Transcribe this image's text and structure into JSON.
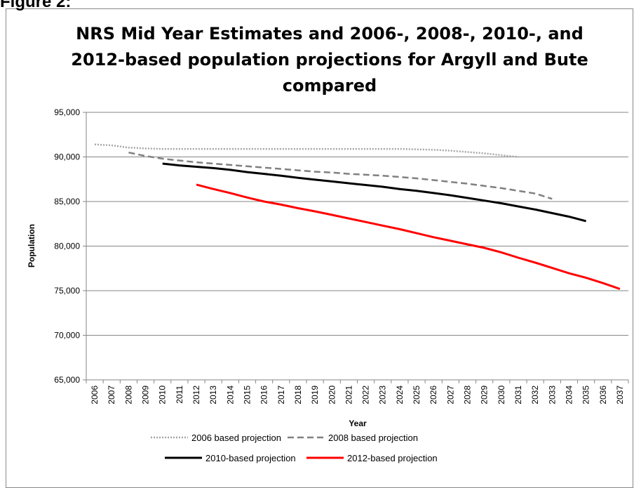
{
  "figure_label": "Figure 2:",
  "chart_data": {
    "type": "line",
    "title": [
      "NRS Mid Year Estimates and 2006-, 2008-, 2010-, and",
      "2012-based population projections for Argyll and Bute",
      "compared"
    ],
    "x_label": "Year",
    "y_label": "Population",
    "categories": [
      "2006",
      "2007",
      "2008",
      "2009",
      "2010",
      "2011",
      "2012",
      "2013",
      "2014",
      "2015",
      "2016",
      "2017",
      "2018",
      "2019",
      "2020",
      "2021",
      "2022",
      "2023",
      "2024",
      "2025",
      "2026",
      "2027",
      "2028",
      "2029",
      "2030",
      "2031",
      "2032",
      "2033",
      "2034",
      "2035",
      "2036",
      "2037"
    ],
    "ylim": [
      65000,
      95000
    ],
    "yticks": [
      {
        "value": 65000,
        "label": "65,000"
      },
      {
        "value": 70000,
        "label": "70,000"
      },
      {
        "value": 75000,
        "label": "75,000"
      },
      {
        "value": 80000,
        "label": "80,000"
      },
      {
        "value": 85000,
        "label": "85,000"
      },
      {
        "value": 90000,
        "label": "90,000"
      },
      {
        "value": 95000,
        "label": "95,000"
      }
    ],
    "grid": true,
    "legend_position": "bottom",
    "series": [
      {
        "name": "2006 based projection",
        "color": "#a6a6a6",
        "dash": "dotted",
        "values": [
          91400,
          91300,
          91050,
          90950,
          90900,
          90900,
          90900,
          90900,
          90900,
          90900,
          90900,
          90900,
          90900,
          90900,
          90900,
          90900,
          90900,
          90900,
          90900,
          90850,
          90800,
          90700,
          90550,
          90400,
          90200,
          90000,
          null,
          null,
          null,
          null,
          null,
          null
        ]
      },
      {
        "name": "2008 based projection",
        "color": "#808080",
        "dash": "dashed",
        "values": [
          null,
          null,
          90500,
          90100,
          89800,
          89600,
          89400,
          89250,
          89100,
          88950,
          88800,
          88650,
          88500,
          88350,
          88250,
          88100,
          88000,
          87900,
          87750,
          87600,
          87400,
          87200,
          87000,
          86750,
          86500,
          86200,
          85900,
          85300,
          null,
          null,
          null,
          null
        ]
      },
      {
        "name": "2010-based projection",
        "color": "#000000",
        "dash": "solid",
        "values": [
          null,
          null,
          null,
          null,
          89250,
          89050,
          88900,
          88750,
          88550,
          88300,
          88100,
          87900,
          87650,
          87450,
          87250,
          87050,
          86850,
          86650,
          86400,
          86200,
          85950,
          85700,
          85400,
          85100,
          84800,
          84450,
          84100,
          83700,
          83300,
          82800,
          null,
          null
        ]
      },
      {
        "name": "2012-based projection",
        "color": "#ff0000",
        "dash": "solid",
        "values": [
          null,
          null,
          null,
          null,
          null,
          null,
          86900,
          86400,
          85950,
          85450,
          85000,
          84650,
          84250,
          83900,
          83500,
          83100,
          82700,
          82300,
          81900,
          81450,
          81000,
          80600,
          80200,
          79800,
          79300,
          78700,
          78150,
          77550,
          76950,
          76450,
          75850,
          75200
        ]
      }
    ]
  }
}
